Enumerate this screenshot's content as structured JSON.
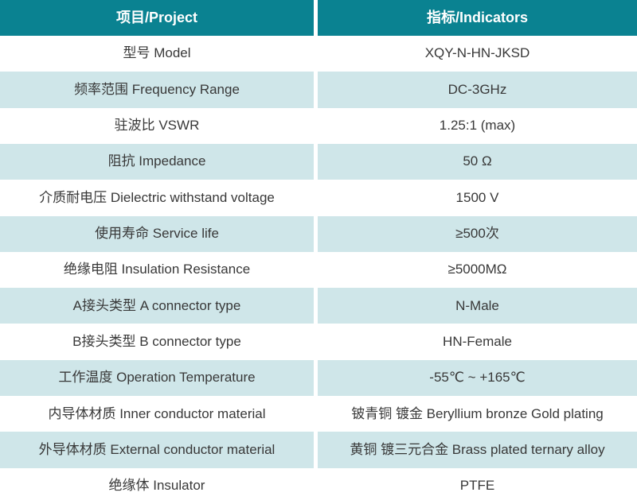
{
  "colors": {
    "header_bg": "#0a8291",
    "header_text": "#ffffff",
    "row_alt_bg": "#cfe6e9",
    "row_bg": "#ffffff",
    "body_text": "#383838",
    "divider": "#ffffff"
  },
  "header": {
    "project": "项目/Project",
    "indicators": "指标/Indicators"
  },
  "rows": [
    {
      "project": "型号 Model",
      "indicator": "XQY-N-HN-JKSD"
    },
    {
      "project": "频率范围 Frequency Range",
      "indicator": "DC-3GHz"
    },
    {
      "project": "驻波比 VSWR",
      "indicator": "1.25:1 (max)"
    },
    {
      "project": "阻抗 Impedance",
      "indicator": "50 Ω"
    },
    {
      "project": "介质耐电压 Dielectric withstand voltage",
      "indicator": "1500 V"
    },
    {
      "project": "使用寿命 Service life",
      "indicator": "≥500次"
    },
    {
      "project": "绝缘电阻 Insulation Resistance",
      "indicator": "≥5000MΩ"
    },
    {
      "project": "A接头类型 A connector type",
      "indicator": "N-Male"
    },
    {
      "project": "B接头类型 B connector type",
      "indicator": "HN-Female"
    },
    {
      "project": "工作温度 Operation Temperature",
      "indicator": "-55℃ ~ +165℃"
    },
    {
      "project": "内导体材质 Inner conductor material",
      "indicator": "铍青铜 镀金 Beryllium bronze Gold plating"
    },
    {
      "project": "外导体材质 External conductor material",
      "indicator": "黄铜 镀三元合金 Brass plated ternary alloy"
    },
    {
      "project": "绝缘体 Insulator",
      "indicator": "PTFE"
    }
  ]
}
